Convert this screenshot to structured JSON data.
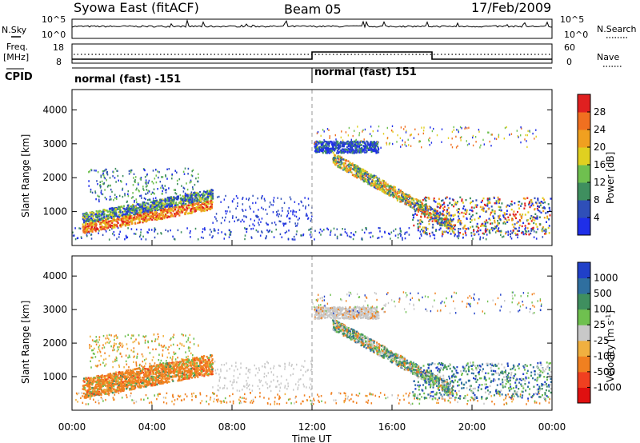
{
  "header": {
    "station": "Syowa East (fitACF)",
    "beam": "Beam 05",
    "date": "17/Feb/2009"
  },
  "strips": {
    "nsky_label": "N.Sky",
    "nsky_ticks": [
      "10^5",
      "10^0"
    ],
    "nsearch_label": "N.Search",
    "nsearch_ticks": [
      "10^5",
      "10^0"
    ],
    "freq_label_1": "Freq.",
    "freq_label_2": "[MHz]",
    "freq_ticks": [
      "18",
      "8"
    ],
    "nave_label": "Nave",
    "nave_ticks": [
      "60",
      "0"
    ],
    "cpid_label": "CPID",
    "cpid_1": "normal (fast) -151",
    "cpid_2": "normal (fast) 151"
  },
  "chart_data": [
    {
      "type": "heatmap",
      "name": "power",
      "ylabel": "Slant Range [km]",
      "xlabel": "Time UT",
      "x_ticks": [
        "00:00",
        "04:00",
        "08:00",
        "12:00",
        "16:00",
        "20:00",
        "00:00"
      ],
      "y_ticks": [
        "1000",
        "2000",
        "3000",
        "4000"
      ],
      "colorbar_label": "Power [dB]",
      "colorbar_ticks": [
        "4",
        "8",
        "12",
        "16",
        "20",
        "24",
        "28"
      ],
      "colors": [
        "#1f2fe8",
        "#2f4fb8",
        "#3f8f5f",
        "#6fc04f",
        "#e0d020",
        "#f0a020",
        "#f07020",
        "#e02020"
      ]
    },
    {
      "type": "heatmap",
      "name": "velocity",
      "ylabel": "Slant Range [km]",
      "xlabel": "Time UT",
      "x_ticks": [
        "00:00",
        "04:00",
        "08:00",
        "12:00",
        "16:00",
        "20:00",
        "00:00"
      ],
      "y_ticks": [
        "1000",
        "2000",
        "3000",
        "4000"
      ],
      "colorbar_label": "Velocity [m s",
      "colorbar_sup": "-1",
      "colorbar_ticks": [
        "1000",
        "500",
        "100",
        "25",
        "-25",
        "-100",
        "-500",
        "-1000"
      ],
      "colors": [
        "#2040c8",
        "#2f6f9f",
        "#3f8f5f",
        "#6fc04f",
        "#c8c8c8",
        "#f0b040",
        "#f08020",
        "#f04020",
        "#e01010"
      ]
    }
  ]
}
